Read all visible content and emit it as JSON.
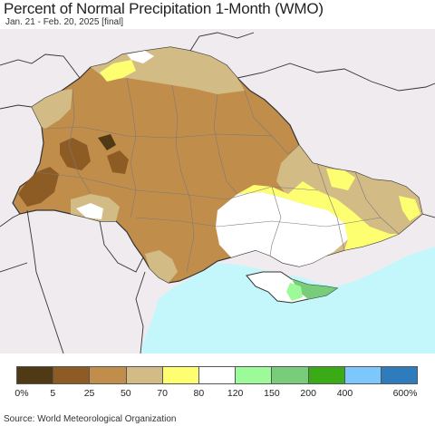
{
  "title": "Percent of Normal Precipitation 1-Month (WMO)",
  "subtitle": "Jan. 21 - Feb. 20, 2025 [final]",
  "source": "Source: World Meteorological Organization",
  "colors": {
    "outside": "#efebee",
    "sea": "#c4f7fb",
    "border": "#333333",
    "admin_border": "#7a7a7a"
  },
  "legend": {
    "bins": [
      {
        "color": "#503a15"
      },
      {
        "color": "#8d5b24"
      },
      {
        "color": "#c18d4a"
      },
      {
        "color": "#d3bb85"
      },
      {
        "color": "#feff70"
      },
      {
        "color": "#ffffff"
      },
      {
        "color": "#9dfa98"
      },
      {
        "color": "#78cc7a"
      },
      {
        "color": "#3aab17"
      },
      {
        "color": "#7cc7fb"
      },
      {
        "color": "#2f7cbd"
      }
    ],
    "labels": [
      "0%",
      "5",
      "25",
      "50",
      "70",
      "80",
      "120",
      "150",
      "200",
      "400",
      "600%"
    ]
  }
}
